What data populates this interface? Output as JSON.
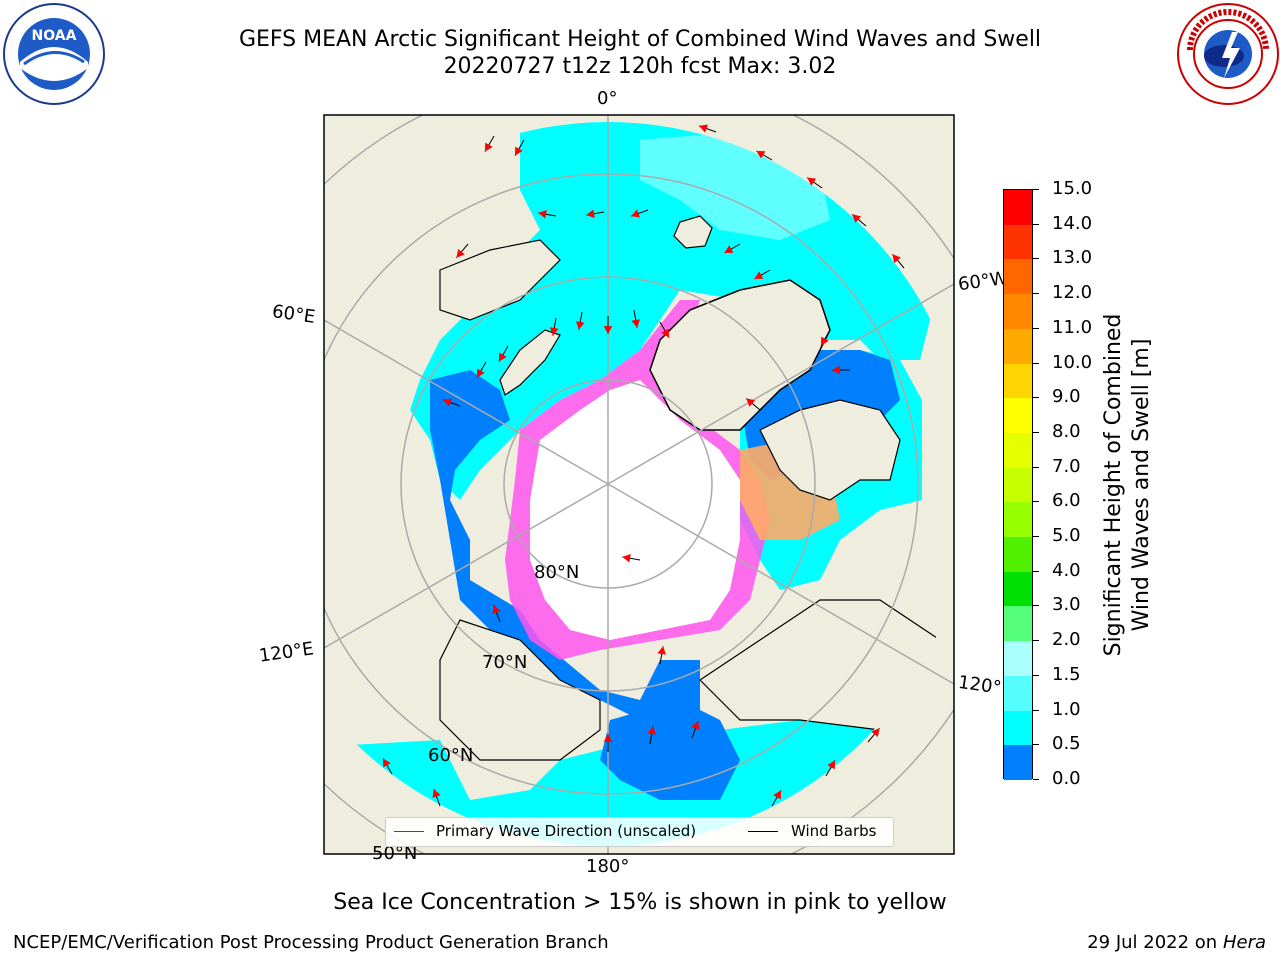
{
  "title": {
    "line1": "GEFS MEAN Arctic Significant Height of Combined Wind Waves and Swell",
    "line2": "20220727 t12z 120h fcst   Max: 3.02"
  },
  "logos": {
    "left": "NOAA",
    "right": "NATIONAL WEATHER SERVICE"
  },
  "map": {
    "projection": "north-polar-stereographic",
    "colors": {
      "land": "#efedde",
      "ice": "#ffffff",
      "ocean_low": "#00e6ff",
      "grid": "#aaaaaa",
      "wave_arrow": "#ff0000",
      "wind_barb": "#000000"
    },
    "longitude_labels": [
      "0°",
      "60°E",
      "120°E",
      "180°",
      "120°W",
      "60°W"
    ],
    "latitude_labels": [
      "80°N",
      "70°N",
      "60°N",
      "50°N"
    ]
  },
  "colorbar": {
    "label_line1": "Significant Height of Combined",
    "label_line2": "Wind Waves and Swell [m]",
    "ticks": [
      "15.0",
      "14.0",
      "13.0",
      "12.0",
      "11.0",
      "10.0",
      "9.0",
      "8.0",
      "7.0",
      "6.0",
      "5.0",
      "4.0",
      "3.0",
      "2.0",
      "1.5",
      "1.0",
      "0.5",
      "0.0"
    ],
    "colors": [
      "#ff0000",
      "#ff3300",
      "#ff6600",
      "#ff8800",
      "#ffaa00",
      "#ffd500",
      "#ffff00",
      "#e6ff00",
      "#c8ff00",
      "#96ff00",
      "#50f000",
      "#00e000",
      "#55ff7a",
      "#aaffff",
      "#55ffff",
      "#00ffff",
      "#0080ff",
      "#0000ff"
    ]
  },
  "legend": {
    "primary_wave": "Primary Wave Direction (unscaled)",
    "wind_barbs": "Wind Barbs"
  },
  "caption": "Sea Ice Concentration > 15% is shown in pink to yellow",
  "footer": {
    "left": "NCEP/EMC/Verification Post Processing Product Generation Branch",
    "right_prefix": "29 Jul 2022 on ",
    "right_host": "Hera"
  }
}
